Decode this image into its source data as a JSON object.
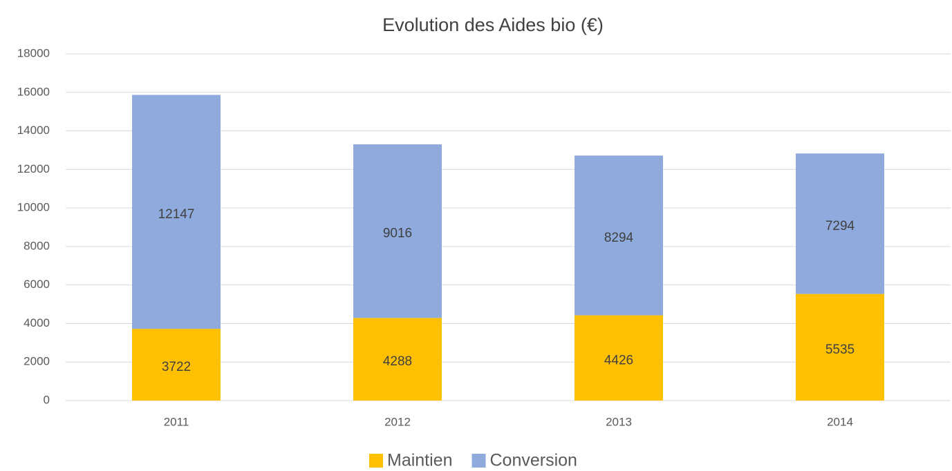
{
  "chart_data": {
    "type": "stacked_bar",
    "title": "Evolution des Aides bio (€)",
    "categories": [
      "2011",
      "2012",
      "2013",
      "2014"
    ],
    "series": [
      {
        "name": "Maintien",
        "color": "#ffc000",
        "values": [
          3722,
          4288,
          4426,
          5535
        ]
      },
      {
        "name": "Conversion",
        "color": "#8faadc",
        "values": [
          12147,
          9016,
          8294,
          7294
        ]
      }
    ],
    "ylim": [
      0,
      18000
    ],
    "yticks": [
      0,
      2000,
      4000,
      6000,
      8000,
      10000,
      12000,
      14000,
      16000,
      18000
    ],
    "grid": true,
    "legend": "bottom"
  }
}
